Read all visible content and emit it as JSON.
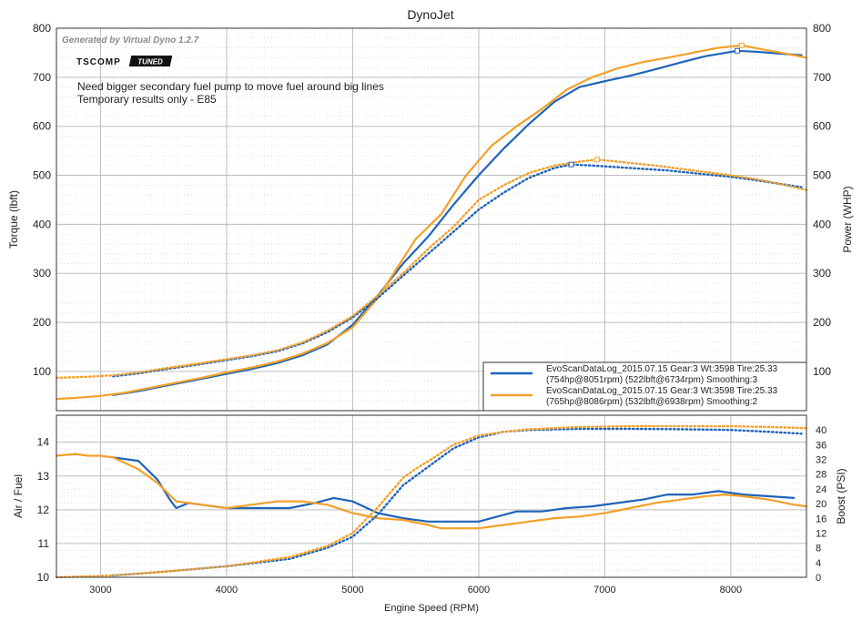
{
  "title": "DynoJet",
  "generated_by": "Generated by Virtual Dyno 1.2.7",
  "logo": {
    "text": "TSCOMP",
    "badge": "TUNED"
  },
  "notes": [
    "Need bigger secondary fuel pump to move fuel around big lines",
    "Temporary results only - E85"
  ],
  "colors": {
    "blue": "#1f63b8",
    "orange": "#f2a12a",
    "grid": "#bdbdbd",
    "frame": "#333333"
  },
  "chart_data": [
    {
      "type": "line",
      "name": "upper",
      "xlabel": "",
      "ylabel_left": "Torque (lbft)",
      "ylabel_right": "Power (WHP)",
      "xlim": [
        2650,
        8600
      ],
      "ylim": [
        20,
        800
      ],
      "y_ticks": [
        100,
        200,
        300,
        400,
        500,
        600,
        700,
        800
      ],
      "x_ticks": [
        3000,
        4000,
        5000,
        6000,
        7000,
        8000
      ],
      "series": [
        {
          "name": "blue-power",
          "color": "blue",
          "style": "solid",
          "x": [
            3100,
            3300,
            3500,
            3800,
            4000,
            4200,
            4400,
            4600,
            4800,
            5000,
            5200,
            5400,
            5600,
            5800,
            6000,
            6200,
            6400,
            6600,
            6800,
            7000,
            7200,
            7400,
            7600,
            7800,
            8051,
            8200,
            8400,
            8560
          ],
          "y": [
            52,
            60,
            70,
            85,
            95,
            105,
            117,
            133,
            155,
            195,
            255,
            320,
            375,
            440,
            500,
            555,
            605,
            650,
            680,
            692,
            703,
            716,
            730,
            743,
            754,
            752,
            748,
            745
          ]
        },
        {
          "name": "orange-power",
          "color": "orange",
          "style": "solid",
          "x": [
            2650,
            2800,
            3000,
            3200,
            3400,
            3600,
            3800,
            4000,
            4200,
            4400,
            4600,
            4800,
            5000,
            5200,
            5400,
            5500,
            5700,
            5900,
            6100,
            6300,
            6500,
            6700,
            6900,
            7100,
            7300,
            7500,
            7700,
            7900,
            8086,
            8250,
            8400,
            8600
          ],
          "y": [
            44,
            46,
            50,
            57,
            67,
            77,
            87,
            98,
            108,
            120,
            136,
            158,
            190,
            250,
            330,
            370,
            420,
            500,
            560,
            600,
            635,
            675,
            700,
            718,
            731,
            740,
            750,
            760,
            765,
            757,
            750,
            740
          ]
        },
        {
          "name": "blue-torque",
          "color": "blue",
          "style": "dotted",
          "x": [
            3100,
            3300,
            3500,
            3800,
            4000,
            4200,
            4400,
            4600,
            4800,
            5000,
            5200,
            5400,
            5600,
            5800,
            6000,
            6200,
            6400,
            6600,
            6734,
            6900,
            7200,
            7500,
            7800,
            8000,
            8200,
            8400,
            8560
          ],
          "y": [
            90,
            96,
            104,
            115,
            123,
            131,
            141,
            157,
            180,
            210,
            250,
            295,
            340,
            385,
            430,
            465,
            495,
            515,
            522,
            520,
            515,
            510,
            502,
            497,
            490,
            482,
            476
          ]
        },
        {
          "name": "orange-torque",
          "color": "orange",
          "style": "dotted",
          "x": [
            2650,
            2900,
            3100,
            3300,
            3500,
            3800,
            4000,
            4200,
            4400,
            4600,
            4800,
            5000,
            5200,
            5400,
            5600,
            5800,
            6000,
            6200,
            6400,
            6600,
            6800,
            6938,
            7100,
            7400,
            7700,
            8000,
            8200,
            8400,
            8600
          ],
          "y": [
            87,
            89,
            92,
            98,
            106,
            117,
            125,
            133,
            143,
            159,
            183,
            213,
            255,
            300,
            350,
            395,
            450,
            480,
            505,
            520,
            528,
            532,
            528,
            520,
            510,
            500,
            492,
            482,
            470
          ]
        }
      ],
      "markers": [
        {
          "series": "blue-power",
          "x": 8051,
          "y": 754
        },
        {
          "series": "orange-power",
          "x": 8086,
          "y": 765
        },
        {
          "series": "blue-torque",
          "x": 6734,
          "y": 522
        },
        {
          "series": "orange-torque",
          "x": 6938,
          "y": 532
        }
      ],
      "legend": {
        "placement": "bottom-right",
        "entries": [
          {
            "color": "blue",
            "line1": "EvoScanDataLog_2015.07.15 Gear:3 Wt:3598 Tire:25.33",
            "line2": "(754hp@8051rpm) (522lbft@6734rpm) Smoothing:3"
          },
          {
            "color": "orange",
            "line1": "EvoScanDataLog_2015.07.15 Gear:3 Wt:3598 Tire:25.33",
            "line2": "(765hp@8086rpm) (532lbft@6938rpm) Smoothing:2"
          }
        ]
      }
    },
    {
      "type": "line",
      "name": "lower",
      "xlabel": "Engine Speed (RPM)",
      "ylabel_left": "Air / Fuel",
      "ylabel_right": "Boost (PSI)",
      "xlim": [
        2650,
        8600
      ],
      "ylim_left": [
        10,
        14.8
      ],
      "ylim_right": [
        0,
        44
      ],
      "y_ticks_left": [
        10,
        11,
        12,
        13,
        14
      ],
      "y_ticks_right": [
        0,
        4,
        8,
        12,
        16,
        20,
        24,
        28,
        32,
        36,
        40
      ],
      "x_ticks": [
        3000,
        4000,
        5000,
        6000,
        7000,
        8000
      ],
      "series": [
        {
          "name": "blue-afr",
          "axis": "left",
          "color": "blue",
          "style": "solid",
          "x": [
            3100,
            3300,
            3450,
            3550,
            3600,
            3700,
            3800,
            4000,
            4200,
            4500,
            4700,
            4850,
            5000,
            5200,
            5400,
            5600,
            5800,
            6000,
            6100,
            6300,
            6500,
            6700,
            6900,
            7100,
            7300,
            7500,
            7700,
            7900,
            8100,
            8300,
            8500
          ],
          "y": [
            13.55,
            13.45,
            12.9,
            12.3,
            12.05,
            12.2,
            12.15,
            12.05,
            12.05,
            12.05,
            12.2,
            12.35,
            12.25,
            11.9,
            11.75,
            11.65,
            11.65,
            11.65,
            11.75,
            11.95,
            11.95,
            12.05,
            12.1,
            12.2,
            12.3,
            12.45,
            12.45,
            12.55,
            12.45,
            12.4,
            12.35
          ]
        },
        {
          "name": "orange-afr",
          "axis": "left",
          "color": "orange",
          "style": "solid",
          "x": [
            2650,
            2800,
            2900,
            3000,
            3100,
            3300,
            3450,
            3600,
            3700,
            3800,
            4000,
            4200,
            4400,
            4600,
            4800,
            5000,
            5200,
            5400,
            5600,
            5700,
            5800,
            6000,
            6200,
            6400,
            6600,
            6800,
            7000,
            7200,
            7400,
            7600,
            7800,
            7950,
            8100,
            8300,
            8500,
            8600
          ],
          "y": [
            13.6,
            13.65,
            13.6,
            13.6,
            13.55,
            13.2,
            12.8,
            12.25,
            12.2,
            12.15,
            12.05,
            12.15,
            12.25,
            12.25,
            12.15,
            11.9,
            11.75,
            11.7,
            11.55,
            11.45,
            11.45,
            11.45,
            11.55,
            11.65,
            11.75,
            11.8,
            11.9,
            12.05,
            12.2,
            12.3,
            12.4,
            12.45,
            12.4,
            12.3,
            12.15,
            12.1
          ]
        },
        {
          "name": "blue-boost",
          "axis": "right",
          "color": "blue",
          "style": "dotted",
          "x": [
            3100,
            3500,
            4000,
            4500,
            4800,
            5000,
            5200,
            5400,
            5600,
            5800,
            6000,
            6200,
            6400,
            6800,
            7200,
            7600,
            8000,
            8300,
            8560
          ],
          "y": [
            0.5,
            1.5,
            3,
            5,
            8,
            11,
            17,
            25,
            30,
            35,
            38,
            39.5,
            40,
            40.3,
            40.3,
            40.2,
            40,
            39.5,
            39
          ]
        },
        {
          "name": "orange-boost",
          "axis": "right",
          "color": "orange",
          "style": "dotted",
          "x": [
            2650,
            3100,
            3500,
            4000,
            4500,
            4800,
            5000,
            5200,
            5400,
            5500,
            5600,
            5800,
            6000,
            6200,
            6400,
            6800,
            7200,
            7600,
            8000,
            8300,
            8600
          ],
          "y": [
            0,
            0.5,
            1.5,
            3,
            5.5,
            8.5,
            12,
            19,
            27,
            29.5,
            31.5,
            36,
            38.5,
            39.5,
            40.2,
            40.8,
            41,
            41,
            41,
            40.8,
            40.5
          ]
        }
      ]
    }
  ]
}
